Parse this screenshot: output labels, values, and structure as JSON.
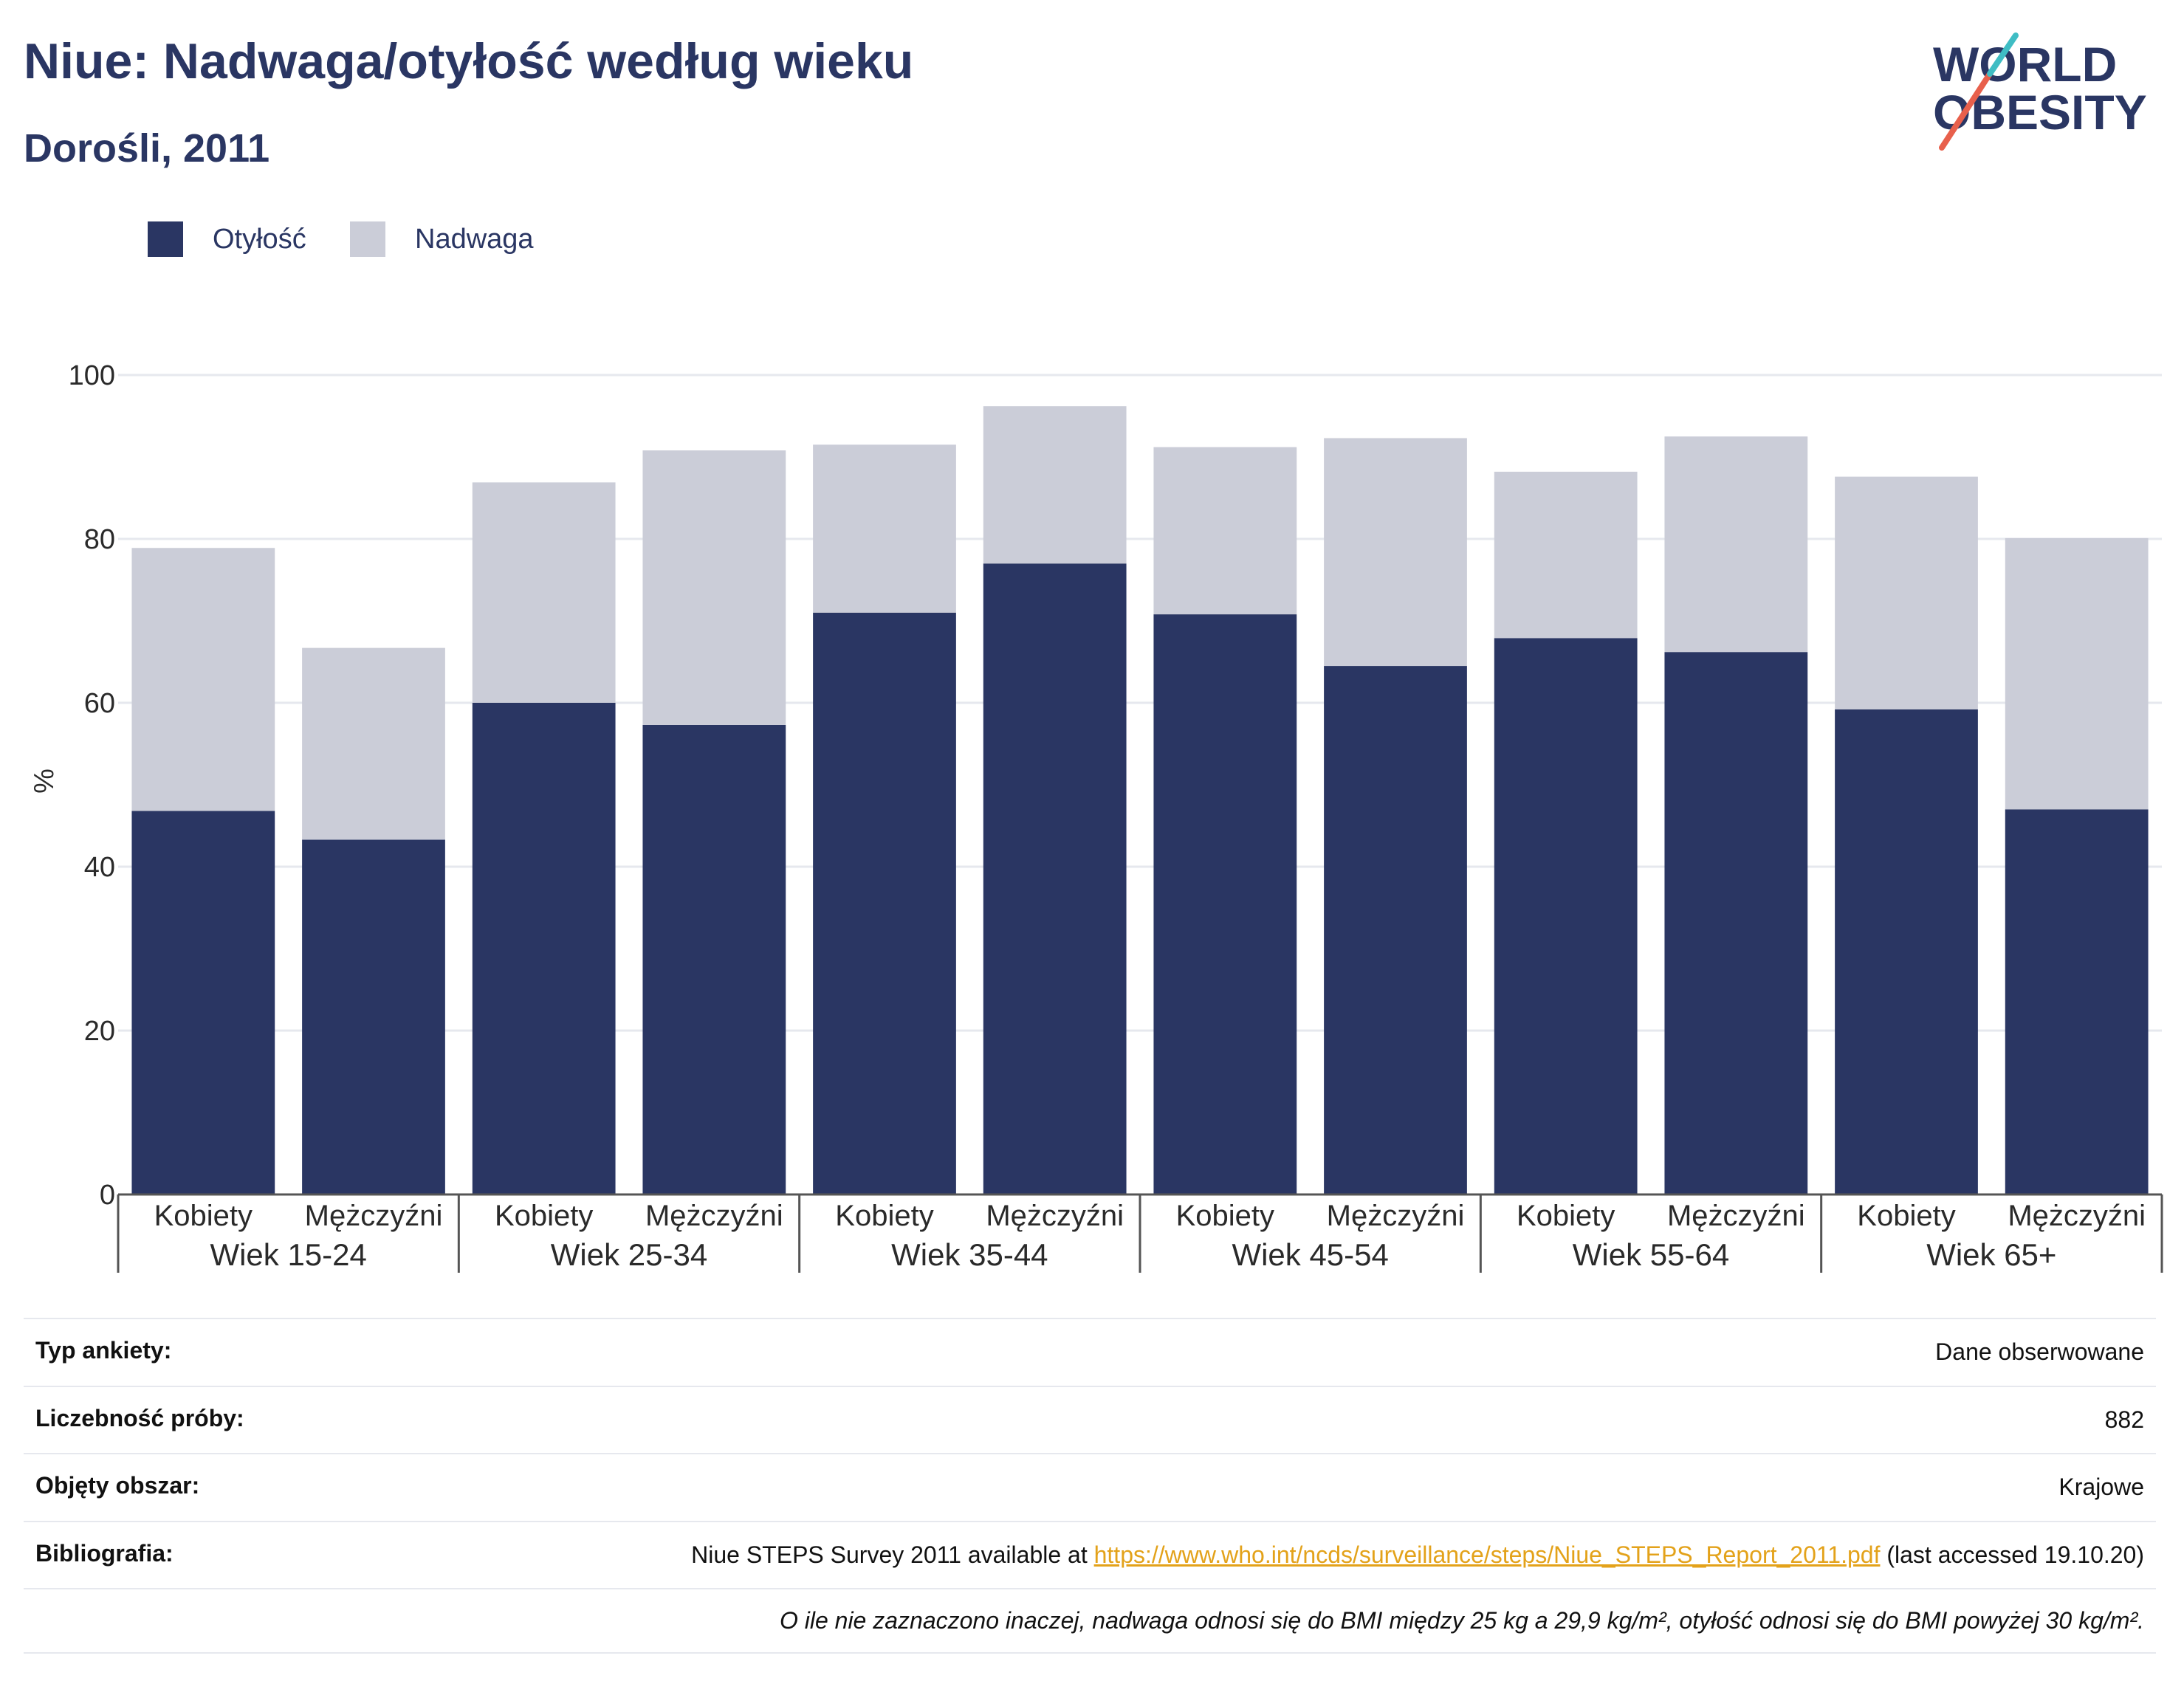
{
  "header": {
    "title": "Niue: Nadwaga/otyłość według wieku",
    "subtitle": "Dorośli, 2011"
  },
  "logo": {
    "line1": "WORLD",
    "line2": "OBESITY",
    "accent_colors": [
      "#e8604c",
      "#3fbdc4"
    ]
  },
  "colors": {
    "obesity": "#2a3663",
    "overweight": "#cbcdd8",
    "grid": "#e6e8ee"
  },
  "chart_data": {
    "type": "bar",
    "stacked": true,
    "ylabel": "%",
    "ylim": [
      0,
      100
    ],
    "yticks": [
      0,
      20,
      40,
      60,
      80,
      100
    ],
    "legend": [
      "Otyłość",
      "Nadwaga"
    ],
    "legend_position": "top-left",
    "grid": true,
    "groups": [
      "Wiek 15-24",
      "Wiek 25-34",
      "Wiek 35-44",
      "Wiek 45-54",
      "Wiek 55-64",
      "Wiek 65+"
    ],
    "categories": [
      "Kobiety",
      "Mężczyźni",
      "Kobiety",
      "Mężczyźni",
      "Kobiety",
      "Mężczyźni",
      "Kobiety",
      "Mężczyźni",
      "Kobiety",
      "Mężczyźni",
      "Kobiety",
      "Mężczyźni"
    ],
    "series": [
      {
        "name": "Otyłość",
        "values": [
          46.8,
          43.3,
          60.0,
          57.3,
          71.0,
          77.0,
          70.8,
          64.5,
          67.9,
          66.2,
          59.2,
          47.0
        ]
      },
      {
        "name": "Nadwaga",
        "values": [
          32.1,
          23.4,
          26.9,
          33.5,
          20.5,
          19.2,
          20.4,
          27.8,
          20.3,
          26.3,
          28.4,
          33.1
        ]
      }
    ]
  },
  "info": {
    "rows": [
      {
        "label": "Typ ankiety:",
        "value": "Dane obserwowane"
      },
      {
        "label": "Liczebność próby:",
        "value": "882"
      },
      {
        "label": "Objęty obszar:",
        "value": "Krajowe"
      }
    ],
    "bibliography": {
      "label": "Bibliografia:",
      "prefix": "Niue STEPS Survey 2011 available at ",
      "link": "https://www.who.int/ncds/surveillance/steps/Niue_STEPS_Report_2011.pdf",
      "suffix": " (last accessed 19.10.20)"
    },
    "note": "O ile nie zaznaczono inaczej, nadwaga odnosi się do BMI między 25 kg a 29,9 kg/m², otyłość odnosi się do BMI powyżej 30 kg/m²."
  }
}
